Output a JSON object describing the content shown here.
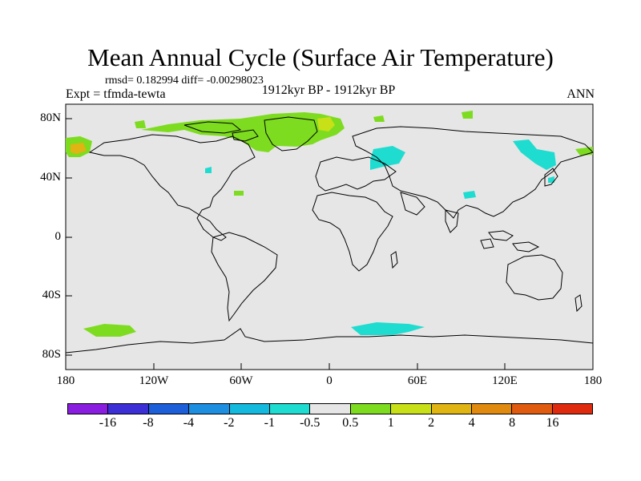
{
  "title": "Mean Annual Cycle (Surface Air Temperature)",
  "stats": "rmsd= 0.182994 diff= -0.00298023",
  "experiment": "Expt = tfmda-tewta",
  "period": "1912kyr BP - 1912kyr BP",
  "season": "ANN",
  "lat_ticks": [
    "80N",
    "40N",
    "0",
    "40S",
    "80S"
  ],
  "lon_ticks": [
    "180",
    "120W",
    "60W",
    "0",
    "60E",
    "120E",
    "180"
  ],
  "colorbar": {
    "labels": [
      "-16",
      "-8",
      "-4",
      "-2",
      "-1",
      "-0.5",
      "0.5",
      "1",
      "2",
      "4",
      "8",
      "16"
    ],
    "colors": [
      "#8a1ee0",
      "#3c2fd6",
      "#1c5fd8",
      "#1d8ee0",
      "#14b9de",
      "#1fdcd0",
      "#e6e6e6",
      "#7ddc1f",
      "#c8e018",
      "#e0b412",
      "#e08a10",
      "#e05a10",
      "#e02a10"
    ]
  },
  "colors": {
    "ocean_land": "#e6e6e6",
    "positive": "#7ddc1f",
    "positive_strong": "#c8e018",
    "negative": "#1fdcd0"
  }
}
